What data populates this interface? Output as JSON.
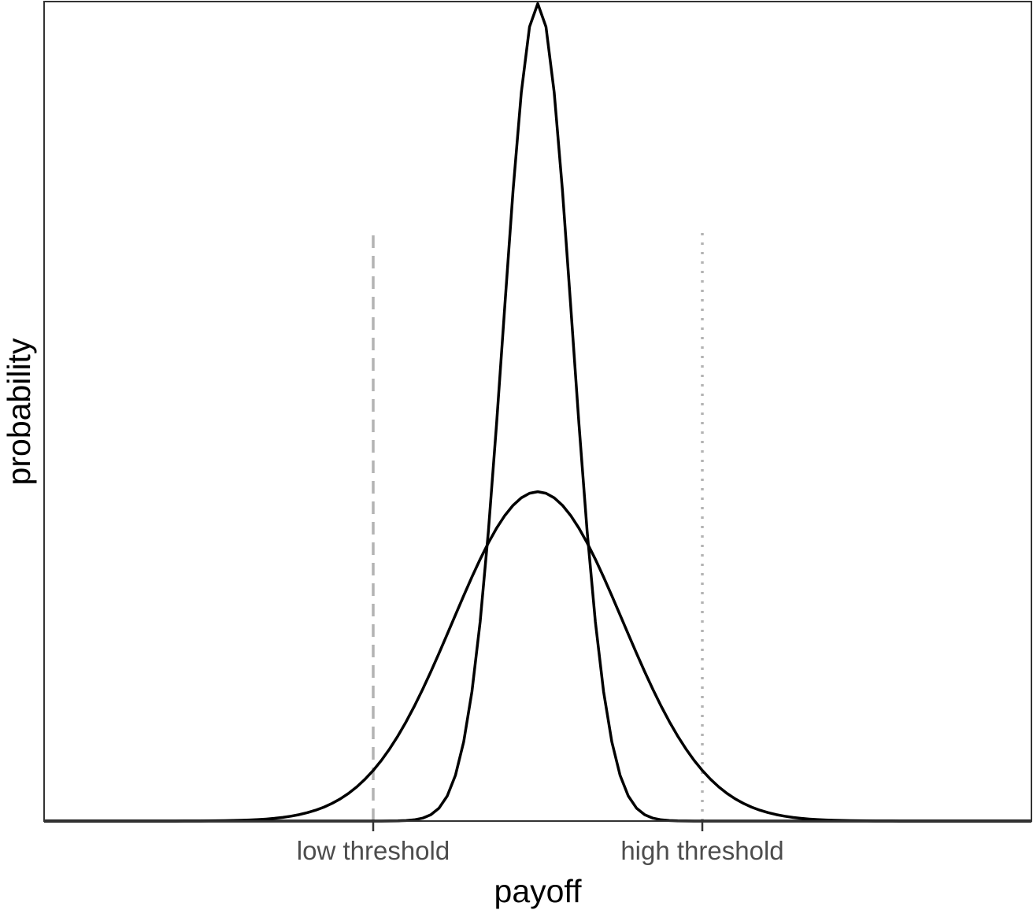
{
  "chart_data": {
    "type": "line",
    "title": "",
    "xlabel": "payoff",
    "ylabel": "probability",
    "xlim": [
      -3.6,
      3.6
    ],
    "ylim": [
      0,
      1.6
    ],
    "x_ticks": [
      {
        "value": -1.2,
        "label": "low threshold"
      },
      {
        "value": 1.2,
        "label": "high threshold"
      }
    ],
    "y_ticks": [],
    "grid": false,
    "legend": "none",
    "series": [
      {
        "distribution": "normal",
        "mean": 0,
        "sd": 0.25,
        "peak_density": 1.596,
        "color": "#000000"
      },
      {
        "distribution": "normal",
        "mean": 0,
        "sd": 0.62,
        "peak_density": 0.643,
        "color": "#000000"
      }
    ],
    "reference_lines": [
      {
        "x": -1.2,
        "ymax": 1.15,
        "style": "dashed",
        "color": "#b3b3b3"
      },
      {
        "x": 1.2,
        "ymax": 1.15,
        "style": "dotted",
        "color": "#b3b3b3"
      }
    ],
    "colors": {
      "curve": "#000000",
      "reference": "#b3b3b3",
      "panel_border": "#333333",
      "tick_text": "#4d4d4d"
    }
  }
}
